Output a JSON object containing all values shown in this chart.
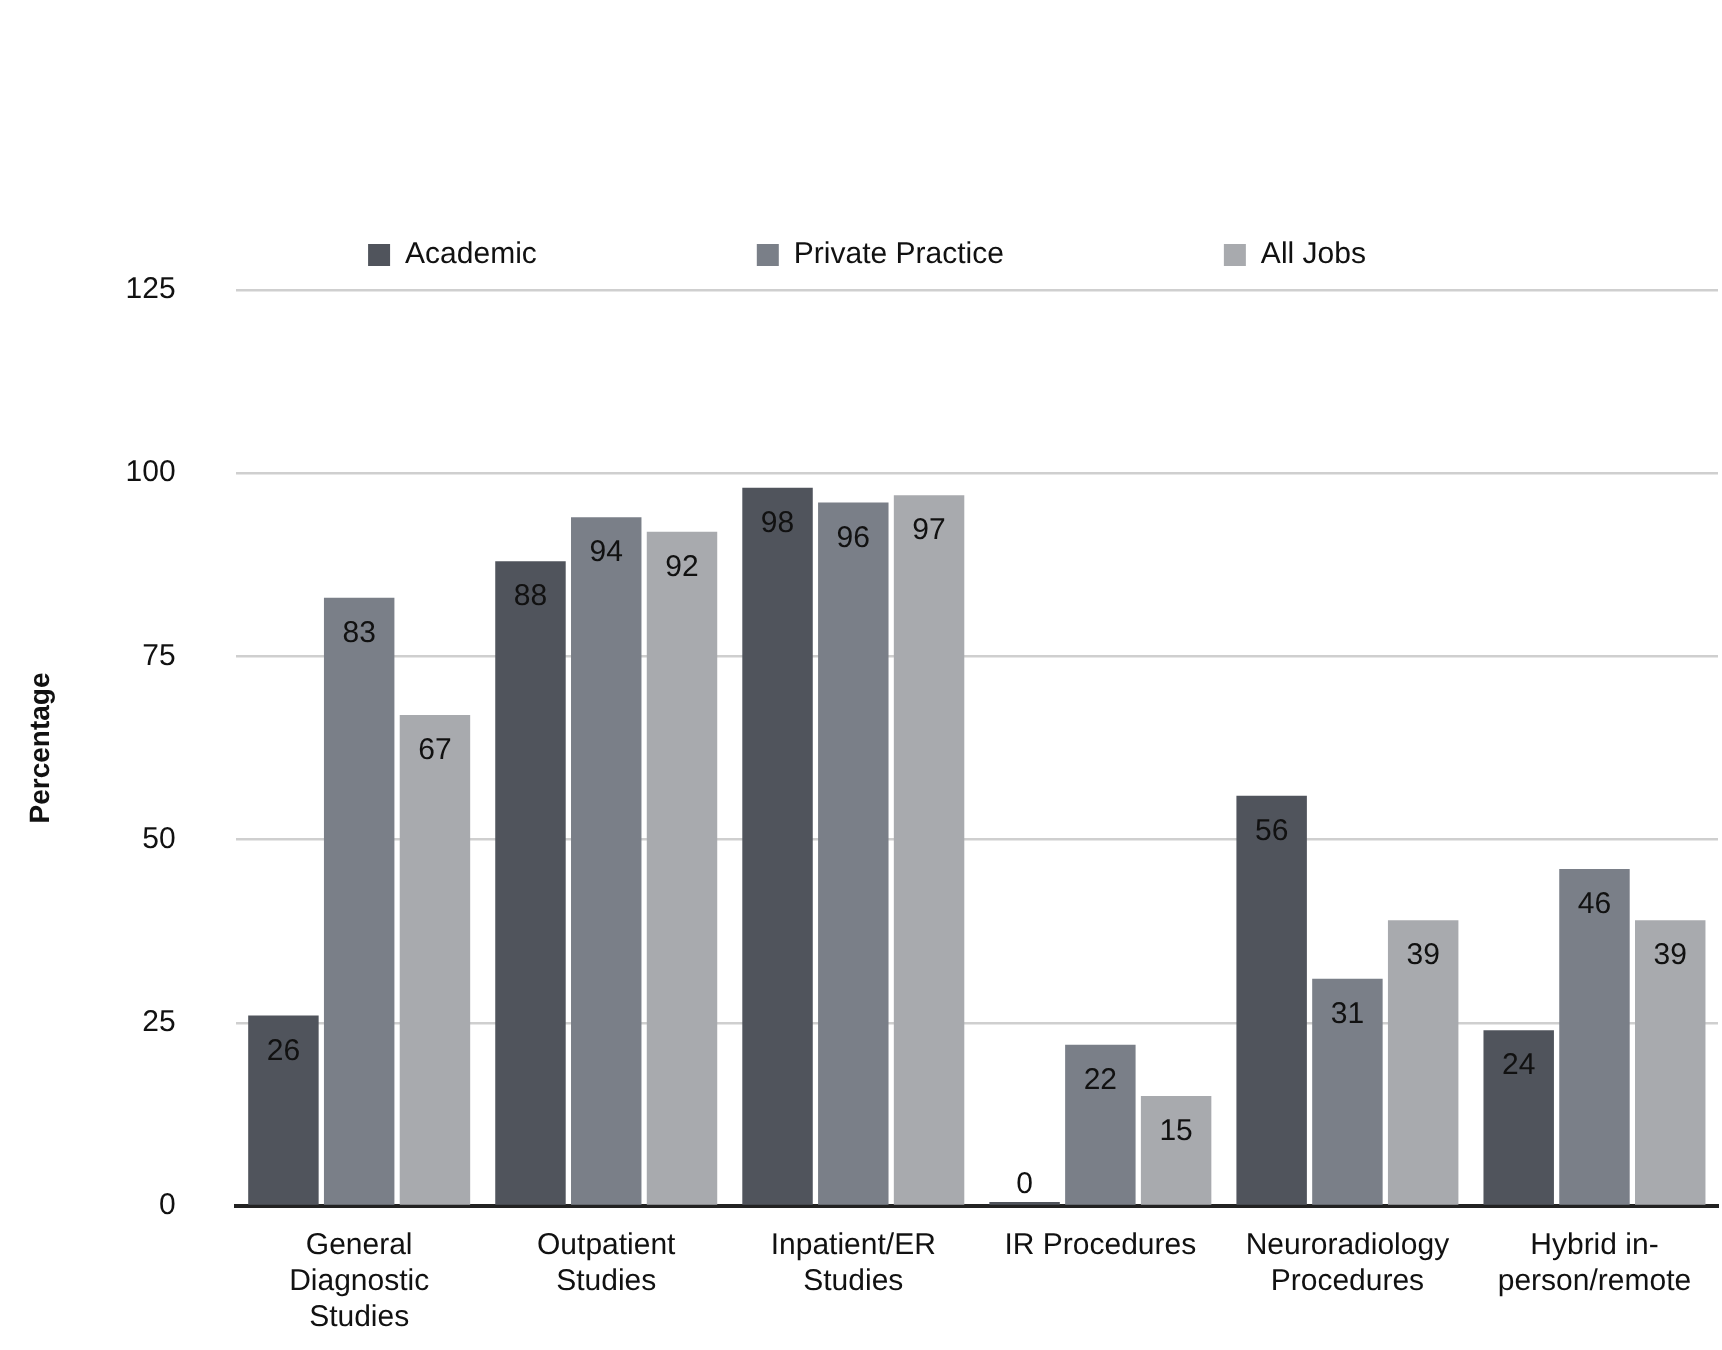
{
  "chart_data": {
    "type": "bar",
    "ylabel": "Percentage",
    "categories": [
      "General Diagnostic Studies",
      "Outpatient Studies",
      "Inpatient/ER Studies",
      "IR Procedures",
      "Neuroradiology Procedures",
      "Hybrid in-person/remote"
    ],
    "series": [
      {
        "name": "Academic",
        "color": "#50545c",
        "values": [
          26,
          88,
          98,
          0,
          56,
          24
        ]
      },
      {
        "name": "Private Practice",
        "color": "#7a7f88",
        "values": [
          83,
          94,
          96,
          22,
          31,
          46
        ]
      },
      {
        "name": "All Jobs",
        "color": "#a8aaae",
        "values": [
          67,
          92,
          97,
          15,
          39,
          39
        ]
      }
    ],
    "ylim": [
      0,
      125
    ],
    "yticks": [
      0,
      25,
      50,
      75,
      100,
      125
    ],
    "grid": "y",
    "legend": "top",
    "data_labels": true
  }
}
